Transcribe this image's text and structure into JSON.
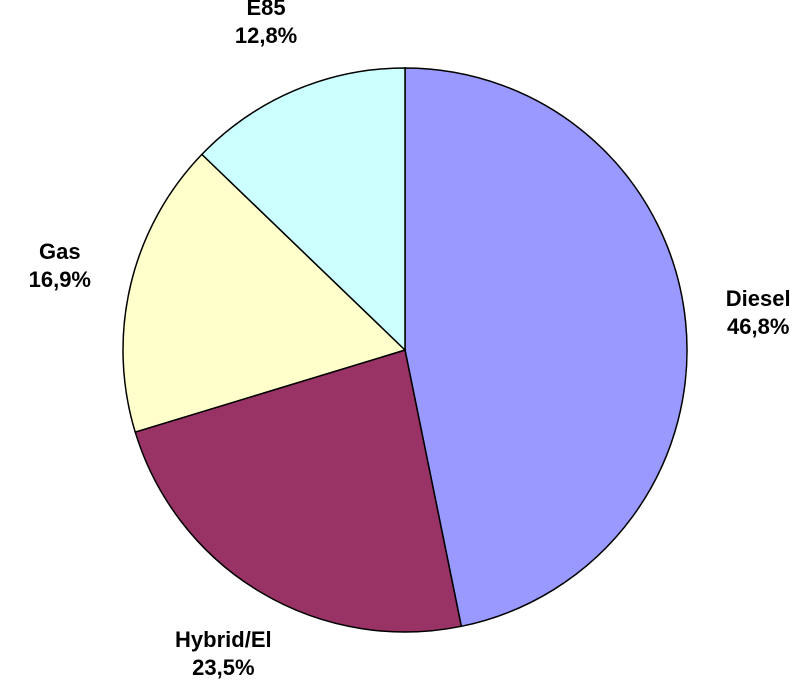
{
  "chart_data": {
    "type": "pie",
    "categories": [
      "Diesel",
      "Hybrid/El",
      "Gas",
      "E85"
    ],
    "values": [
      46.8,
      23.5,
      16.9,
      12.8
    ],
    "value_labels": [
      "46,8%",
      "23,5%",
      "16,9%",
      "12,8%"
    ],
    "colors": [
      "#9999ff",
      "#993366",
      "#ffffcc",
      "#ccffff"
    ]
  }
}
